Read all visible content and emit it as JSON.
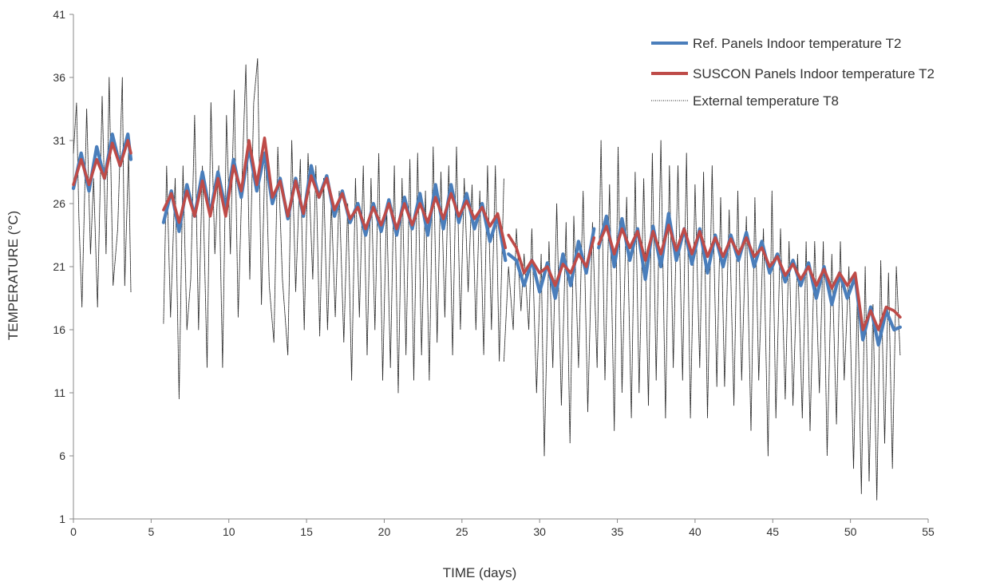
{
  "chart_data": {
    "type": "line",
    "title": "",
    "xlabel": "TIME  (days)",
    "ylabel": "TEMPERATURE  (°C)",
    "xlim": [
      0,
      55
    ],
    "ylim": [
      1,
      41
    ],
    "x_ticks": [
      "0",
      "5",
      "10",
      "15",
      "20",
      "25",
      "30",
      "35",
      "40",
      "45",
      "50",
      "55"
    ],
    "y_ticks": [
      "1",
      "6",
      "11",
      "16",
      "21",
      "26",
      "31",
      "36",
      "41"
    ],
    "grid": false,
    "legend_position": "top-right",
    "colors": {
      "ref": "#4a7ebb",
      "suscon": "#be4b48",
      "external": "#222222"
    },
    "series": [
      {
        "name": "Ref. Panels Indoor temperature T2",
        "key": "ref",
        "segments": [
          {
            "x": [
              0,
              0.5,
              1,
              1.5,
              2,
              2.5,
              3,
              3.5,
              3.7
            ],
            "y": [
              27.2,
              30.0,
              27.0,
              30.5,
              28.0,
              31.5,
              29.0,
              31.5,
              29.5
            ]
          },
          {
            "x": [
              5.8,
              6.3,
              6.8,
              7.3,
              7.8,
              8.3,
              8.8,
              9.3,
              9.8,
              10.3,
              10.8,
              11.3,
              11.8,
              12.3,
              12.8,
              13.3,
              13.8,
              14.3,
              14.8,
              15.3,
              15.8,
              16.3,
              16.8,
              17.3,
              17.8,
              18.3,
              18.8,
              19.3,
              19.8,
              20.3,
              20.8,
              21.3,
              21.8,
              22.3,
              22.8,
              23.3,
              23.8,
              24.3,
              24.8,
              25.3,
              25.8,
              26.3,
              26.8,
              27.3,
              27.8
            ],
            "y": [
              24.5,
              27.0,
              23.8,
              27.5,
              25.0,
              28.5,
              25.2,
              28.5,
              25.5,
              29.5,
              26.5,
              30.5,
              27.0,
              30.0,
              26.0,
              28.0,
              24.8,
              28.0,
              25.0,
              29.0,
              26.5,
              28.2,
              25.0,
              27.0,
              24.5,
              26.0,
              23.5,
              26.0,
              23.8,
              26.3,
              23.5,
              26.5,
              24.0,
              26.8,
              23.5,
              27.5,
              24.0,
              27.5,
              24.5,
              26.8,
              24.0,
              26.0,
              23.0,
              25.0,
              21.5
            ]
          },
          {
            "x": [
              28,
              28.5,
              29,
              29.5,
              30,
              30.5,
              31,
              31.5,
              32,
              32.5,
              33,
              33.5
            ],
            "y": [
              22.0,
              21.5,
              19.5,
              21.5,
              19.0,
              21.3,
              18.5,
              22.0,
              19.5,
              23.0,
              20.5,
              24.0
            ]
          },
          {
            "x": [
              33.8,
              34.3,
              34.8,
              35.3,
              35.8,
              36.3,
              36.8,
              37.3,
              37.8,
              38.3,
              38.8,
              39.3,
              39.8,
              40.3,
              40.8,
              41.3,
              41.8,
              42.3,
              42.8,
              43.3,
              43.8,
              44.3,
              44.8,
              45.3,
              45.8,
              46.3,
              46.8,
              47.3,
              47.8,
              48.3,
              48.8,
              49.3,
              49.8,
              50.3,
              50.8,
              51.3,
              51.8,
              52.3,
              52.8,
              53.2
            ],
            "y": [
              22.5,
              25.0,
              21.0,
              24.8,
              21.5,
              24.0,
              20.0,
              24.2,
              21.0,
              25.2,
              21.5,
              24.0,
              21.2,
              24.0,
              20.5,
              23.5,
              21.0,
              23.5,
              21.5,
              23.7,
              21.0,
              23.0,
              20.5,
              22.0,
              19.8,
              21.5,
              19.5,
              21.3,
              18.5,
              21.0,
              18.0,
              20.5,
              18.5,
              20.2,
              15.2,
              17.8,
              14.8,
              17.5,
              16.0,
              16.2
            ]
          }
        ]
      },
      {
        "name": "SUSCON Panels Indoor temperature T2",
        "key": "suscon",
        "segments": [
          {
            "x": [
              0,
              0.5,
              1,
              1.5,
              2,
              2.5,
              3,
              3.5,
              3.7
            ],
            "y": [
              27.5,
              29.5,
              27.5,
              29.5,
              28.0,
              30.8,
              29.0,
              31.0,
              30.0
            ]
          },
          {
            "x": [
              5.8,
              6.3,
              6.8,
              7.3,
              7.8,
              8.3,
              8.8,
              9.3,
              9.8,
              10.3,
              10.8,
              11.3,
              11.8,
              12.3,
              12.8,
              13.3,
              13.8,
              14.3,
              14.8,
              15.3,
              15.8,
              16.3,
              16.8,
              17.3,
              17.8,
              18.3,
              18.8,
              19.3,
              19.8,
              20.3,
              20.8,
              21.3,
              21.8,
              22.3,
              22.8,
              23.3,
              23.8,
              24.3,
              24.8,
              25.3,
              25.8,
              26.3,
              26.8,
              27.3,
              27.8
            ],
            "y": [
              25.5,
              26.8,
              24.5,
              27.0,
              25.0,
              27.8,
              25.0,
              28.0,
              25.0,
              29.0,
              27.0,
              31.0,
              27.5,
              31.2,
              26.5,
              27.8,
              25.0,
              27.8,
              25.2,
              28.2,
              26.5,
              28.0,
              25.5,
              26.8,
              24.8,
              25.7,
              24.0,
              25.7,
              24.3,
              26.0,
              24.0,
              26.0,
              24.3,
              26.0,
              24.5,
              26.5,
              24.8,
              26.8,
              25.0,
              26.2,
              24.8,
              25.7,
              24.2,
              25.2,
              22.5
            ]
          },
          {
            "x": [
              28,
              28.5,
              29,
              29.5,
              30,
              30.5,
              31,
              31.5,
              32,
              32.5,
              33,
              33.5
            ],
            "y": [
              23.5,
              22.5,
              20.5,
              21.5,
              20.5,
              21.0,
              19.5,
              21.2,
              20.5,
              22.0,
              21.0,
              23.3
            ]
          },
          {
            "x": [
              33.8,
              34.3,
              34.8,
              35.3,
              35.8,
              36.3,
              36.8,
              37.3,
              37.8,
              38.3,
              38.8,
              39.3,
              39.8,
              40.3,
              40.8,
              41.3,
              41.8,
              42.3,
              42.8,
              43.3,
              43.8,
              44.3,
              44.8,
              45.3,
              45.8,
              46.3,
              46.8,
              47.3,
              47.8,
              48.3,
              48.8,
              49.3,
              49.8,
              50.3,
              50.8,
              51.3,
              51.8,
              52.3,
              52.8,
              53.2
            ],
            "y": [
              22.8,
              24.2,
              22.0,
              24.0,
              22.5,
              23.8,
              21.5,
              23.8,
              22.0,
              24.3,
              22.3,
              24.0,
              22.0,
              23.8,
              21.8,
              23.3,
              21.8,
              23.2,
              22.0,
              23.3,
              21.8,
              22.5,
              21.0,
              21.8,
              20.3,
              21.2,
              20.0,
              21.0,
              19.5,
              20.8,
              19.3,
              20.5,
              19.5,
              20.5,
              16.0,
              17.5,
              16.0,
              17.8,
              17.5,
              17.0
            ]
          }
        ]
      },
      {
        "name": "External temperature T8",
        "key": "external",
        "segments": [
          {
            "x": [
              0,
              0.2,
              0.35,
              0.55,
              0.85,
              1.1,
              1.3,
              1.55,
              1.85,
              2.1,
              2.3,
              2.55,
              2.85,
              3.15,
              3.3,
              3.55,
              3.7
            ],
            "y": [
              30.0,
              34.0,
              25.0,
              17.8,
              33.5,
              22.0,
              28.0,
              17.8,
              34.5,
              22.0,
              36.0,
              19.5,
              24.0,
              36.0,
              19.5,
              30.0,
              19.0
            ]
          },
          {
            "x": [
              5.8,
              6.0,
              6.25,
              6.55,
              6.8,
              7.05,
              7.3,
              7.55,
              7.8,
              8.05,
              8.3,
              8.6,
              8.85,
              9.1,
              9.35,
              9.6,
              9.85,
              10.1,
              10.35,
              10.6,
              10.85,
              11.1,
              11.35,
              11.6,
              11.85,
              12.1,
              12.35,
              12.6,
              12.9,
              13.15,
              13.45,
              13.8,
              14.05,
              14.3,
              14.6,
              14.85,
              15.1,
              15.4,
              15.6,
              15.85,
              16.1,
              16.35,
              16.6,
              16.85,
              17.1,
              17.4,
              17.65,
              17.9,
              18.15,
              18.4,
              18.65,
              18.9,
              19.15,
              19.4,
              19.65,
              19.9,
              20.15,
              20.4,
              20.65,
              20.9,
              21.15,
              21.4,
              21.65,
              21.9,
              22.15,
              22.4,
              22.65,
              22.9,
              23.15,
              23.4,
              23.65,
              23.9,
              24.15,
              24.4,
              24.65,
              24.9,
              25.15,
              25.4,
              25.65,
              25.9,
              26.15,
              26.4,
              26.65,
              26.9,
              27.15,
              27.4,
              27.7
            ],
            "y": [
              16.5,
              29.0,
              17.0,
              28.0,
              10.5,
              29.0,
              16.0,
              20.0,
              33.0,
              16.0,
              29.0,
              13.0,
              34.0,
              22.0,
              29.0,
              13.0,
              33.0,
              22.0,
              35.0,
              17.0,
              28.0,
              37.0,
              20.0,
              34.0,
              37.5,
              18.0,
              31.0,
              19.5,
              15.0,
              30.5,
              20.0,
              14.0,
              31.0,
              19.0,
              29.5,
              16.0,
              30.0,
              20.0,
              29.0,
              15.5,
              28.0,
              16.0,
              26.0,
              17.0,
              27.0,
              15.0,
              26.0,
              12.0,
              28.0,
              17.0,
              29.0,
              14.0,
              28.0,
              16.0,
              30.0,
              12.0,
              26.0,
              13.0,
              29.0,
              11.0,
              28.0,
              14.0,
              29.5,
              12.0,
              30.0,
              14.0,
              27.0,
              12.0,
              30.5,
              15.0,
              28.5,
              17.0,
              29.0,
              14.0,
              30.5,
              16.0,
              28.0,
              19.0,
              27.5,
              16.0,
              27.0,
              14.0,
              29.0,
              16.0,
              29.0,
              13.5,
              28.0
            ]
          },
          {
            "x": [
              27.7,
              28.0,
              28.3,
              28.5,
              28.8,
              29.0,
              29.3,
              29.5,
              29.8,
              30.1,
              30.3,
              30.6,
              30.85,
              31.1,
              31.4,
              31.7,
              31.95,
              32.2,
              32.5,
              32.8,
              33.1,
              33.4,
              33.7,
              33.95,
              34.2,
              34.5,
              34.8,
              35.05,
              35.3,
              35.6,
              35.9,
              36.15,
              36.4,
              36.7,
              37.0,
              37.25,
              37.5,
              37.8,
              38.1,
              38.35,
              38.6,
              38.9,
              39.2,
              39.45,
              39.7,
              40.0,
              40.3,
              40.55,
              40.8,
              41.1,
              41.4,
              41.65,
              41.9,
              42.2,
              42.5,
              42.75,
              43.0,
              43.3,
              43.6,
              43.85,
              44.1,
              44.4,
              44.7,
              44.95,
              45.2,
              45.5,
              45.8,
              46.05,
              46.3,
              46.6,
              46.9,
              47.15,
              47.4,
              47.7,
              48.0,
              48.25,
              48.5,
              48.8,
              49.1,
              49.35,
              49.6,
              49.9,
              50.2,
              50.45,
              50.7,
              50.95,
              51.2,
              51.45,
              51.7,
              51.95,
              52.2,
              52.45,
              52.7,
              52.95,
              53.2
            ],
            "y": [
              13.5,
              21.0,
              16.0,
              24.0,
              17.5,
              22.0,
              16.0,
              24.0,
              11.0,
              22.0,
              6.0,
              23.0,
              13.0,
              26.0,
              10.0,
              24.5,
              7.0,
              25.0,
              13.0,
              27.0,
              9.5,
              24.5,
              13.0,
              31.0,
              12.0,
              27.5,
              8.0,
              30.5,
              11.0,
              26.5,
              9.0,
              28.5,
              11.0,
              28.0,
              10.0,
              30.0,
              12.0,
              31.0,
              9.0,
              29.0,
              13.0,
              29.0,
              12.0,
              30.0,
              9.0,
              27.5,
              13.0,
              28.5,
              9.0,
              29.0,
              11.5,
              26.5,
              11.5,
              25.5,
              10.0,
              27.0,
              12.0,
              25.0,
              8.0,
              26.5,
              12.0,
              24.0,
              6.0,
              27.0,
              9.0,
              24.0,
              10.5,
              23.0,
              10.0,
              22.0,
              9.0,
              23.0,
              8.0,
              23.0,
              11.0,
              23.0,
              6.0,
              22.0,
              8.5,
              23.0,
              12.0,
              21.0,
              5.0,
              19.0,
              3.0,
              21.0,
              4.0,
              18.0,
              2.5,
              21.5,
              7.0,
              20.5,
              5.0,
              21.0,
              14.0
            ]
          }
        ]
      }
    ]
  }
}
